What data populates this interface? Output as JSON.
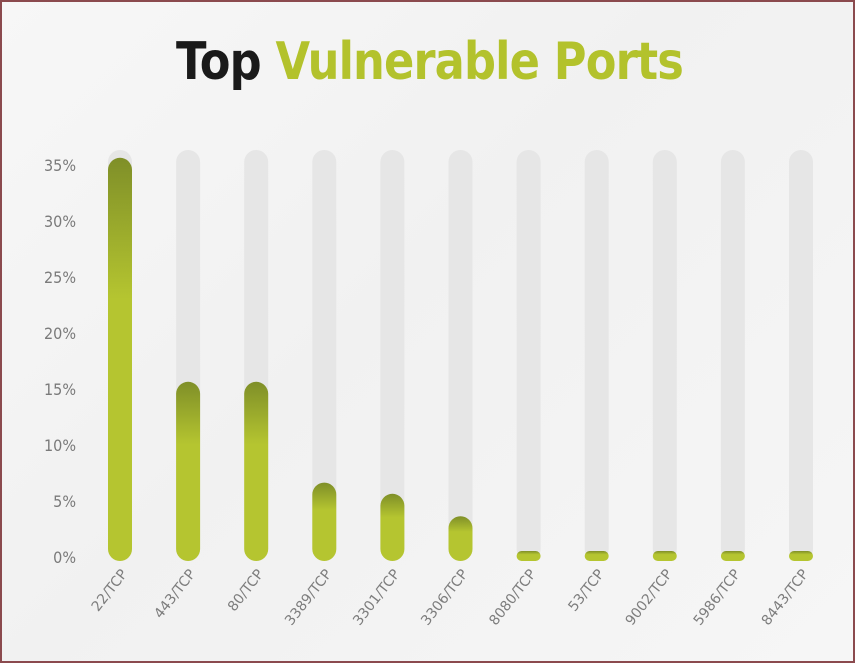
{
  "chart_data": {
    "type": "bar",
    "title_part1": "Top",
    "title_part2": "Vulnerable Ports",
    "categories": [
      "22/TCP",
      "443/TCP",
      "80/TCP",
      "3389/TCP",
      "3301/TCP",
      "3306/TCP",
      "8080/TCP",
      "53/TCP",
      "9002/TCP",
      "5986/TCP",
      "8443/TCP"
    ],
    "values": [
      36,
      16,
      16,
      7,
      6,
      4,
      0.4,
      0.4,
      0.4,
      0.4,
      0.4
    ],
    "yticks": [
      "0%",
      "5%",
      "10%",
      "15%",
      "20%",
      "25%",
      "30%",
      "35%"
    ],
    "ylim": [
      0,
      36
    ],
    "xlabel": "",
    "ylabel": "",
    "grid": false,
    "colors": {
      "bar_top": "#7f8f28",
      "bar_bottom": "#b5c530",
      "track": "#e6e6e6",
      "title_accent": "#b3c22c",
      "title_dark": "#1a1a1a"
    }
  }
}
